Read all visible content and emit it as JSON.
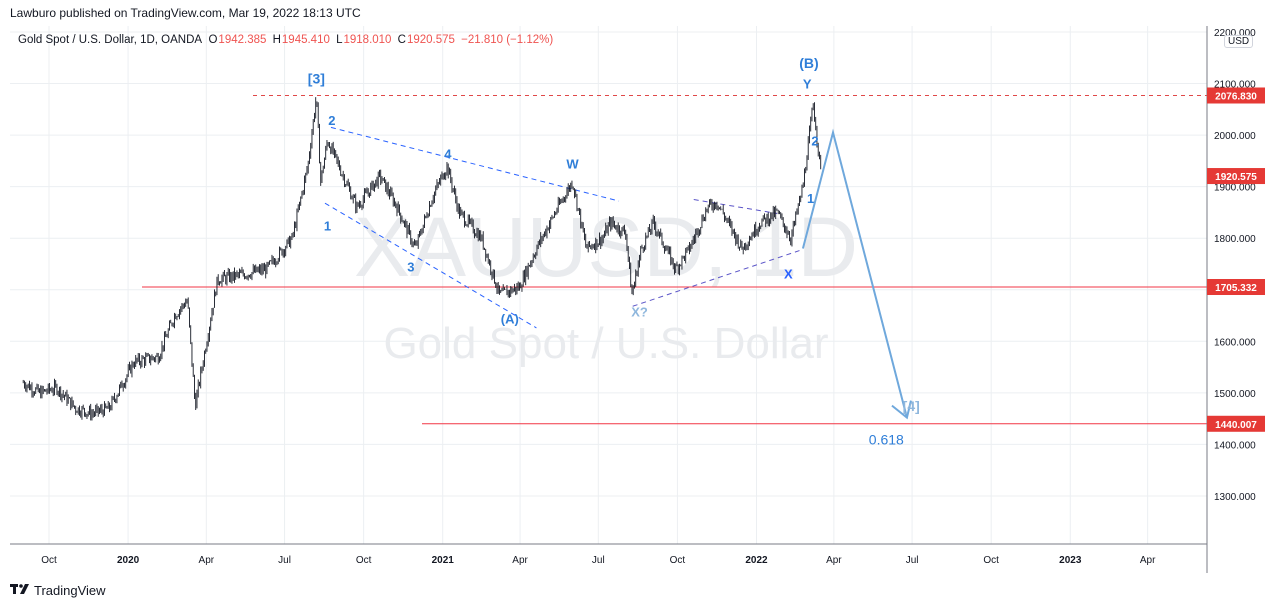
{
  "publisher": "Lawburo published on TradingView.com, Mar 19, 2022 18:13 UTC",
  "symbol_title": "Gold Spot / U.S. Dollar, 1D, OANDA",
  "ohlc": {
    "o_label": "O",
    "o": "1942.385",
    "h_label": "H",
    "h": "1945.410",
    "l_label": "L",
    "l": "1918.010",
    "c_label": "C",
    "c": "1920.575",
    "change": "−21.810 (−1.12%)"
  },
  "currency": "USD",
  "watermark": {
    "ticker": "XAUUSD, 1D",
    "name": "Gold Spot / U.S. Dollar"
  },
  "logo_text": "TradingView",
  "colors": {
    "up": "#26a69a",
    "down": "#131722",
    "bars": "#131722",
    "wave_blue": "#2962ff",
    "label_blue": "#2f7ed8",
    "arrow_blue": "#6fa8dc",
    "purple": "#5b55c8",
    "red_line": "#f23645",
    "dashed_red": "#e04848",
    "price_red": "#e53935",
    "grid": "#eceff2"
  },
  "chart_data": {
    "type": "line",
    "y_axis": {
      "min": 1200,
      "max": 2200,
      "ticks": [
        "2200.000",
        "2100.000",
        "2000.000",
        "1900.000",
        "1800.000",
        "1700.000",
        "1600.000",
        "1500.000",
        "1400.000",
        "1300.000"
      ]
    },
    "x_ticks": [
      "Oct",
      "2020",
      "Apr",
      "Jul",
      "Oct",
      "2021",
      "Apr",
      "Jul",
      "Oct",
      "2022",
      "Apr",
      "Jul",
      "Oct",
      "2023",
      "Apr"
    ],
    "price_labels": [
      {
        "text": "2076.830",
        "value": 2076.83
      },
      {
        "text": "1920.575",
        "value": 1920.575
      },
      {
        "text": "1705.332",
        "value": 1705.332
      },
      {
        "text": "1440.007",
        "value": 1440.007
      }
    ],
    "price_series": {
      "name": "Gold Spot / U.S. Dollar",
      "x": [
        "2019-09-01",
        "2019-09-20",
        "2019-10-10",
        "2019-11-01",
        "2019-11-20",
        "2019-12-10",
        "2020-01-08",
        "2020-02-05",
        "2020-02-24",
        "2020-03-10",
        "2020-03-19",
        "2020-04-14",
        "2020-05-15",
        "2020-06-10",
        "2020-07-10",
        "2020-07-28",
        "2020-08-07",
        "2020-08-12",
        "2020-08-20",
        "2020-09-23",
        "2020-10-20",
        "2020-11-09",
        "2020-11-30",
        "2020-12-20",
        "2021-01-06",
        "2021-01-20",
        "2021-02-15",
        "2021-03-08",
        "2021-03-31",
        "2021-04-20",
        "2021-05-15",
        "2021-06-01",
        "2021-06-17",
        "2021-07-06",
        "2021-07-15",
        "2021-08-02",
        "2021-08-09",
        "2021-08-20",
        "2021-09-03",
        "2021-09-29",
        "2021-10-15",
        "2021-11-05",
        "2021-11-16",
        "2021-12-15",
        "2022-01-05",
        "2022-01-25",
        "2022-02-10",
        "2022-02-24",
        "2022-03-08",
        "2022-03-16",
        "2022-03-18"
      ],
      "y": [
        1520,
        1500,
        1510,
        1470,
        1460,
        1470,
        1560,
        1570,
        1650,
        1680,
        1475,
        1720,
        1730,
        1740,
        1800,
        1940,
        2076,
        1910,
        1990,
        1860,
        1920,
        1860,
        1780,
        1880,
        1940,
        1850,
        1800,
        1690,
        1705,
        1780,
        1860,
        1910,
        1780,
        1800,
        1830,
        1810,
        1690,
        1780,
        1830,
        1740,
        1780,
        1860,
        1870,
        1780,
        1830,
        1850,
        1800,
        1900,
        2060,
        1940,
        1920
      ]
    },
    "annotations": [
      {
        "text": "[3]",
        "x": "2020-08-07",
        "y": 2100
      },
      {
        "text": "1",
        "x": "2020-08-20",
        "y": 1815
      },
      {
        "text": "2",
        "x": "2020-08-25",
        "y": 2020
      },
      {
        "text": "3",
        "x": "2020-11-25",
        "y": 1735
      },
      {
        "text": "4",
        "x": "2021-01-07",
        "y": 1955
      },
      {
        "text": "(A)",
        "x": "2021-03-20",
        "y": 1635
      },
      {
        "text": "W",
        "x": "2021-06-01",
        "y": 1935
      },
      {
        "text": "X?",
        "x": "2021-08-18",
        "y": 1648
      },
      {
        "text": "X",
        "x": "2022-02-07",
        "y": 1722
      },
      {
        "text": "1",
        "x": "2022-03-05",
        "y": 1868
      },
      {
        "text": "2",
        "x": "2022-03-10",
        "y": 1980
      },
      {
        "text": "Y",
        "x": "2022-03-01",
        "y": 2090
      },
      {
        "text": "(B)",
        "x": "2022-03-03",
        "y": 2130
      },
      {
        "text": "[4]",
        "x": "2022-06-30",
        "y": 1465
      },
      {
        "text": "0.618",
        "x": "2022-06-01",
        "y": 1400
      }
    ],
    "grid": true,
    "legend": "none"
  }
}
